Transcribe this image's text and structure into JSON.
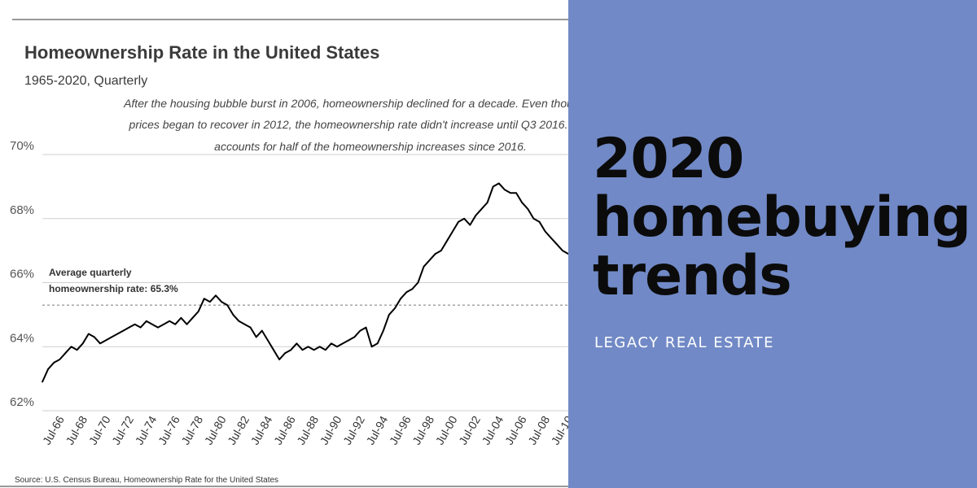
{
  "chart_data": {
    "type": "line",
    "title": "Homeownership Rate in the United States",
    "subtitle": "1965-2020, Quarterly",
    "annotation": [
      "After the housing bubble burst in 2006, homeownership declined for a decade. Even thou",
      "prices began to recover in 2012, the homeownership rate didn't increase until Q3 2016.",
      "accounts for half of the homeownership increases since 2016."
    ],
    "average_label": [
      "Average quarterly",
      "homeownership rate: 65.3%"
    ],
    "average_value": 65.3,
    "ylim": [
      62,
      70
    ],
    "yticks": [
      70,
      68,
      66,
      64,
      62
    ],
    "ytick_labels": [
      "70%",
      "68%",
      "66%",
      "64%",
      "62%"
    ],
    "xtick_labels": [
      "Jul-66",
      "Jul-68",
      "Jul-70",
      "Jul-72",
      "Jul-74",
      "Jul-76",
      "Jul-78",
      "Jul-80",
      "Jul-82",
      "Jul-84",
      "Jul-86",
      "Jul-88",
      "Jul-90",
      "Jul-92",
      "Jul-94",
      "Jul-96",
      "Jul-98",
      "Jul-00",
      "Jul-02",
      "Jul-04",
      "Jul-06",
      "Jul-08",
      "Jul-10"
    ],
    "xtick_years": [
      1966.5,
      1968.5,
      1970.5,
      1972.5,
      1974.5,
      1976.5,
      1978.5,
      1980.5,
      1982.5,
      1984.5,
      1986.5,
      1988.5,
      1990.5,
      1992.5,
      1994.5,
      1996.5,
      1998.5,
      2000.5,
      2002.5,
      2004.5,
      2006.5,
      2008.5,
      2010.5
    ],
    "xlim": [
      1965,
      2010.5
    ],
    "series": [
      {
        "x": [
          1965.0,
          1965.5,
          1966.0,
          1966.5,
          1967.0,
          1967.5,
          1968.0,
          1968.5,
          1969.0,
          1969.5,
          1970.0,
          1970.5,
          1971.0,
          1971.5,
          1972.0,
          1972.5,
          1973.0,
          1973.5,
          1974.0,
          1974.5,
          1975.0,
          1975.5,
          1976.0,
          1976.5,
          1977.0,
          1977.5,
          1978.0,
          1978.5,
          1979.0,
          1979.5,
          1980.0,
          1980.5,
          1981.0,
          1981.5,
          1982.0,
          1982.5,
          1983.0,
          1983.5,
          1984.0,
          1984.5,
          1985.0,
          1985.5,
          1986.0,
          1986.5,
          1987.0,
          1987.5,
          1988.0,
          1988.5,
          1989.0,
          1989.5,
          1990.0,
          1990.5,
          1991.0,
          1991.5,
          1992.0,
          1992.5,
          1993.0,
          1993.5,
          1994.0,
          1994.5,
          1995.0,
          1995.5,
          1996.0,
          1996.5,
          1997.0,
          1997.5,
          1998.0,
          1998.5,
          1999.0,
          1999.5,
          2000.0,
          2000.5,
          2001.0,
          2001.5,
          2002.0,
          2002.5,
          2003.0,
          2003.5,
          2004.0,
          2004.5,
          2005.0,
          2005.5,
          2006.0,
          2006.5,
          2007.0,
          2007.5,
          2008.0,
          2008.5,
          2009.0,
          2009.5,
          2010.0,
          2010.5
        ],
        "values": [
          62.9,
          63.3,
          63.5,
          63.6,
          63.8,
          64.0,
          63.9,
          64.1,
          64.4,
          64.3,
          64.1,
          64.2,
          64.3,
          64.4,
          64.5,
          64.6,
          64.7,
          64.6,
          64.8,
          64.7,
          64.6,
          64.7,
          64.8,
          64.7,
          64.9,
          64.7,
          64.9,
          65.1,
          65.5,
          65.4,
          65.6,
          65.4,
          65.3,
          65.0,
          64.8,
          64.7,
          64.6,
          64.3,
          64.5,
          64.2,
          63.9,
          63.6,
          63.8,
          63.9,
          64.1,
          63.9,
          64.0,
          63.9,
          64.0,
          63.9,
          64.1,
          64.0,
          64.1,
          64.2,
          64.3,
          64.5,
          64.6,
          64.0,
          64.1,
          64.5,
          65.0,
          65.2,
          65.5,
          65.7,
          65.8,
          66.0,
          66.5,
          66.7,
          66.9,
          67.0,
          67.3,
          67.6,
          67.9,
          68.0,
          67.8,
          68.1,
          68.3,
          68.5,
          69.0,
          69.1,
          68.9,
          68.8,
          68.8,
          68.5,
          68.3,
          68.0,
          67.9,
          67.6,
          67.4,
          67.2,
          67.0,
          66.9
        ]
      }
    ],
    "source": "Source:   U.S. Census Bureau, Homeownership Rate for the United States"
  },
  "promo": {
    "headline": [
      "2020",
      "homebuying",
      "trends"
    ],
    "brand": "LEGACY REAL ESTATE"
  },
  "colors": {
    "panel": "#7189c6",
    "line": "#000000",
    "grid": "#cfcfcf",
    "average": "#777777"
  }
}
